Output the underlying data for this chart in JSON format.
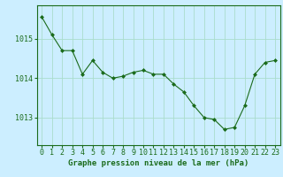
{
  "x": [
    0,
    1,
    2,
    3,
    4,
    5,
    6,
    7,
    8,
    9,
    10,
    11,
    12,
    13,
    14,
    15,
    16,
    17,
    18,
    19,
    20,
    21,
    22,
    23
  ],
  "y": [
    1015.55,
    1015.1,
    1014.7,
    1014.7,
    1014.1,
    1014.45,
    1014.15,
    1014.0,
    1014.05,
    1014.15,
    1014.2,
    1014.1,
    1014.1,
    1013.85,
    1013.65,
    1013.3,
    1013.0,
    1012.95,
    1012.7,
    1012.75,
    1013.3,
    1014.1,
    1014.4,
    1014.45
  ],
  "line_color": "#1a6b1a",
  "marker": "D",
  "marker_size": 2.0,
  "background_color": "#cceeff",
  "grid_color_v": "#aaddcc",
  "grid_color_h": "#aaddcc",
  "ylabel_ticks": [
    1013,
    1014,
    1015
  ],
  "xlabel_label": "Graphe pression niveau de la mer (hPa)",
  "xlabel_fontsize": 6.5,
  "tick_fontsize": 6.0,
  "ylim": [
    1012.3,
    1015.85
  ],
  "xlim": [
    -0.5,
    23.5
  ]
}
